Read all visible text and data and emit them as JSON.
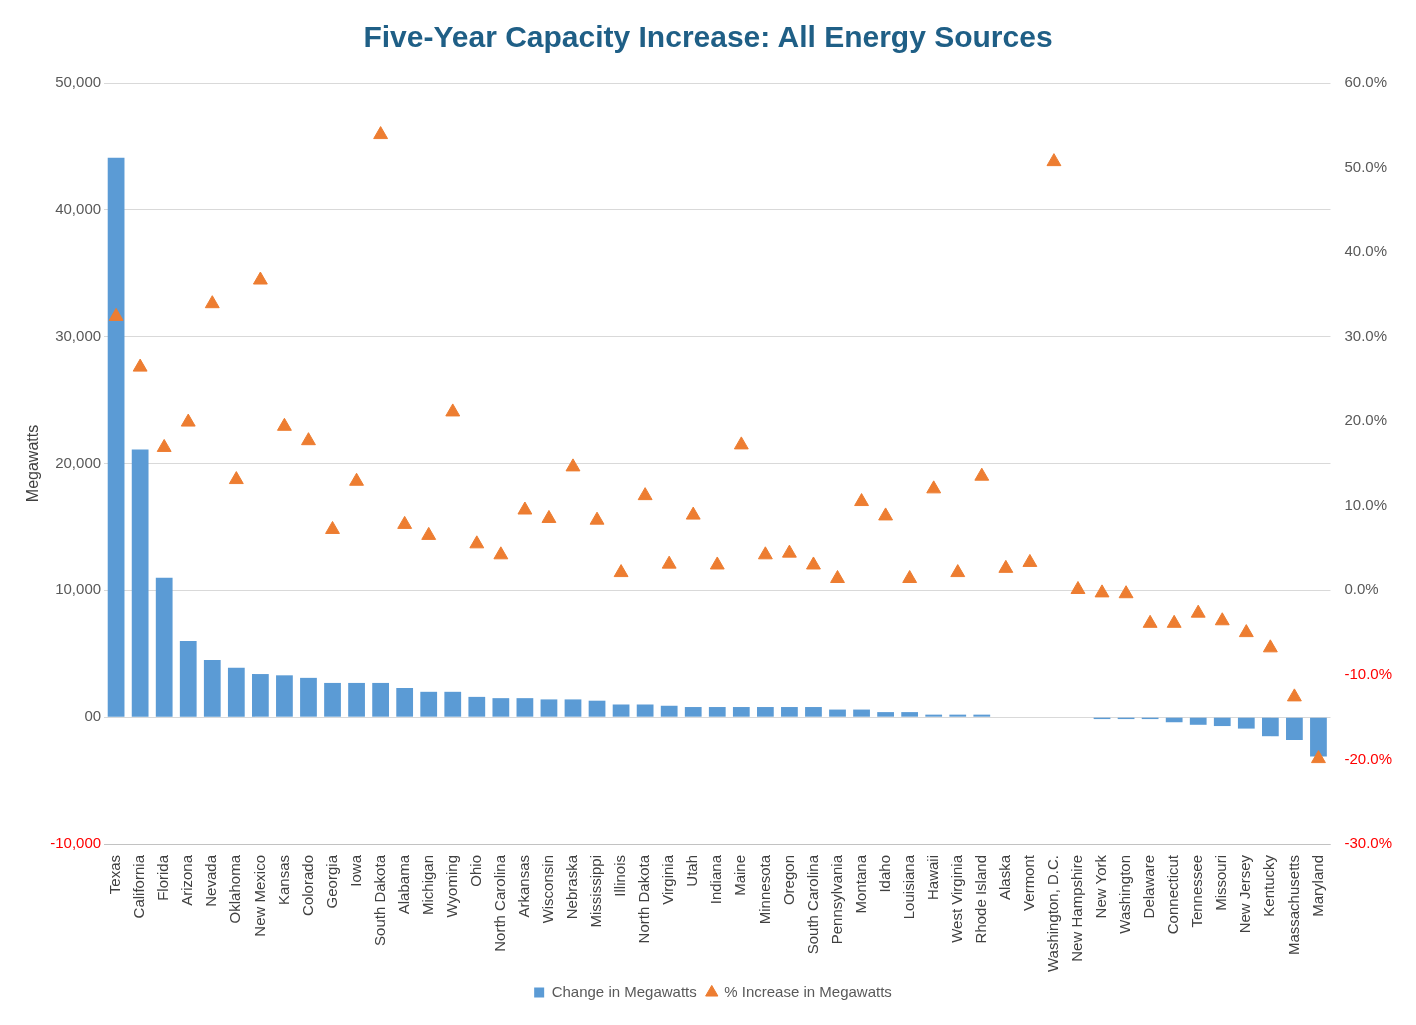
{
  "chart_data": {
    "type": "bar",
    "title": "Five-Year Capacity Increase: All Energy Sources",
    "ylabel": "Megawatts",
    "categories": [
      "Texas",
      "California",
      "Florida",
      "Arizona",
      "Nevada",
      "Oklahoma",
      "New Mexico",
      "Kansas",
      "Colorado",
      "Georgia",
      "Iowa",
      "South Dakota",
      "Alabama",
      "Michigan",
      "Wyoming",
      "Ohio",
      "North Carolina",
      "Arkansas",
      "Wisconsin",
      "Nebraska",
      "Mississippi",
      "Illinois",
      "North Dakota",
      "Virginia",
      "Utah",
      "Indiana",
      "Maine",
      "Minnesota",
      "Oregon",
      "South Carolina",
      "Pennsylvania",
      "Montana",
      "Idaho",
      "Louisiana",
      "Hawaii",
      "West Virginia",
      "Rhode Island",
      "Alaska",
      "Vermont",
      "Washington, D.C.",
      "New Hampshire",
      "New York",
      "Washington",
      "Delaware",
      "Connecticut",
      "Tennessee",
      "Missouri",
      "New Jersey",
      "Kentucky",
      "Massachusetts",
      "Maryland"
    ],
    "series": [
      {
        "name": "Change in Megawatts",
        "color": "#5b9bd5",
        "values": [
          44100,
          21100,
          11000,
          6000,
          4500,
          3900,
          3400,
          3300,
          3100,
          2700,
          2700,
          2700,
          2300,
          2000,
          2000,
          1600,
          1500,
          1500,
          1400,
          1400,
          1300,
          1000,
          1000,
          900,
          800,
          800,
          800,
          800,
          800,
          800,
          600,
          600,
          400,
          400,
          200,
          200,
          200,
          null,
          null,
          null,
          null,
          -150,
          -150,
          -150,
          -400,
          -600,
          -700,
          -900,
          -1500,
          -1800,
          -3100
        ]
      },
      {
        "name": "% Increase in Megawatts",
        "type": "scatter",
        "axis": "y2",
        "color": "#ed7d31",
        "values": [
          32.4,
          26.4,
          16.9,
          19.9,
          33.9,
          13.1,
          36.7,
          19.4,
          17.7,
          7.2,
          12.9,
          53.9,
          7.8,
          6.5,
          21.1,
          5.5,
          4.2,
          9.5,
          8.5,
          14.6,
          8.3,
          2.1,
          11.2,
          3.1,
          8.9,
          3.0,
          17.2,
          4.2,
          4.4,
          3.0,
          1.4,
          10.5,
          8.8,
          1.4,
          12.0,
          2.1,
          13.5,
          2.6,
          3.3,
          50.7,
          0.1,
          -0.3,
          -0.4,
          -3.9,
          -3.9,
          -2.7,
          -3.6,
          -5.0,
          -6.8,
          -12.6,
          -19.9
        ]
      }
    ],
    "ylim": [
      -10000,
      50000
    ],
    "yticks": [
      {
        "value": -10000,
        "label": "-10,000"
      },
      {
        "value": 0,
        "label": "00"
      },
      {
        "value": 10000,
        "label": "10,000"
      },
      {
        "value": 20000,
        "label": "20,000"
      },
      {
        "value": 30000,
        "label": "30,000"
      },
      {
        "value": 40000,
        "label": "40,000"
      },
      {
        "value": 50000,
        "label": "50,000"
      }
    ],
    "y2lim": [
      -30,
      60
    ],
    "y2ticks": [
      {
        "value": -30,
        "label": "-30.0%"
      },
      {
        "value": -20,
        "label": "-20.0%"
      },
      {
        "value": -10,
        "label": "-10.0%"
      },
      {
        "value": 0,
        "label": "0.0%"
      },
      {
        "value": 10,
        "label": "10.0%"
      },
      {
        "value": 20,
        "label": "20.0%"
      },
      {
        "value": 30,
        "label": "30.0%"
      },
      {
        "value": 40,
        "label": "40.0%"
      },
      {
        "value": 50,
        "label": "50.0%"
      },
      {
        "value": 60,
        "label": "60.0%"
      }
    ],
    "grid": "y",
    "legend": "bottom",
    "marker": "triangle"
  }
}
